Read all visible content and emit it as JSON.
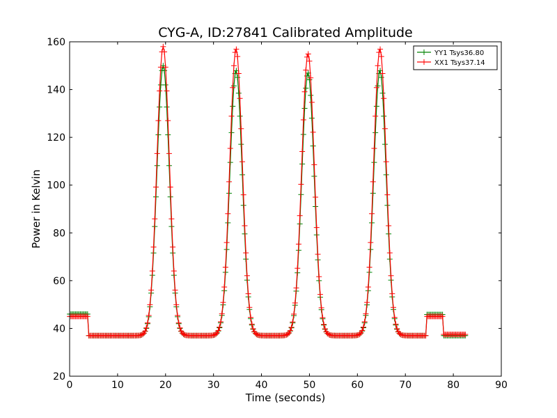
{
  "chart_data": {
    "type": "line",
    "title": "CYG-A, ID:27841 Calibrated Amplitude",
    "xlabel": "Time (seconds)",
    "ylabel": "Power in Kelvin",
    "xlim": [
      0,
      90
    ],
    "ylim": [
      20,
      160
    ],
    "xticks": [
      0,
      10,
      20,
      30,
      40,
      50,
      60,
      70,
      80,
      90
    ],
    "yticks": [
      20,
      40,
      60,
      80,
      100,
      120,
      140,
      160
    ],
    "grid": false,
    "legend_position": "top-right",
    "series": [
      {
        "name": "YY1 Tsys36.80",
        "color": "#008000",
        "peaks": [
          {
            "center": 19.5,
            "peak": 150
          },
          {
            "center": 34.7,
            "peak": 148
          },
          {
            "center": 49.7,
            "peak": 147
          },
          {
            "center": 64.7,
            "peak": 148
          }
        ],
        "baseline": 37,
        "cal_segments": [
          {
            "x_start": 0.0,
            "x_end": 4.0,
            "value": 46
          },
          {
            "x_start": 74.5,
            "x_end": 78.0,
            "value": 45.8
          }
        ],
        "flat_segments": [
          {
            "x_start": 4.0,
            "x_end": 9.5,
            "value": 37
          },
          {
            "x_start": 78.0,
            "x_end": 82.5,
            "value": 37
          }
        ],
        "x_end": 82.5,
        "sigma": 1.3,
        "marker": "+"
      },
      {
        "name": "XX1 Tsys37.14",
        "color": "#ff0000",
        "peaks": [
          {
            "center": 19.5,
            "peak": 158
          },
          {
            "center": 34.7,
            "peak": 157
          },
          {
            "center": 49.7,
            "peak": 155
          },
          {
            "center": 64.7,
            "peak": 157
          }
        ],
        "baseline": 37,
        "cal_segments": [
          {
            "x_start": 0.0,
            "x_end": 4.0,
            "value": 45
          },
          {
            "x_start": 74.5,
            "x_end": 78.0,
            "value": 45
          }
        ],
        "flat_segments": [
          {
            "x_start": 4.0,
            "x_end": 9.5,
            "value": 37
          },
          {
            "x_start": 78.0,
            "x_end": 82.5,
            "value": 37.5
          }
        ],
        "x_end": 82.5,
        "sigma": 1.3,
        "marker": "+"
      }
    ]
  }
}
